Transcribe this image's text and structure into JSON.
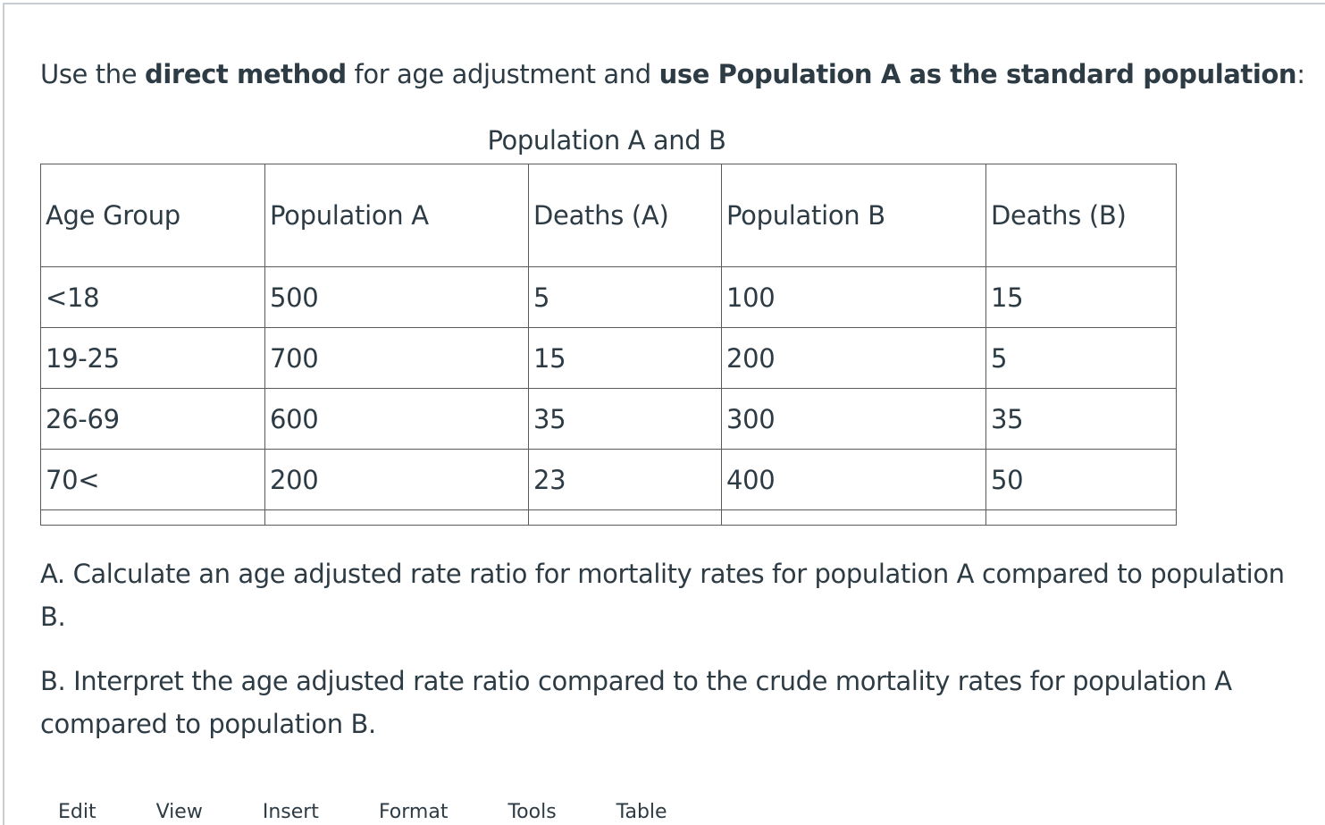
{
  "intro": {
    "prefix": "Use the ",
    "bold1": "direct method",
    "middle": " for age adjustment and ",
    "bold2": "use Population A as the standard population",
    "suffix": ":"
  },
  "table": {
    "caption": "Population A and B",
    "headers": [
      "Age Group",
      "Population A",
      "Deaths (A)",
      "Population B",
      "Deaths (B)"
    ],
    "rows": [
      [
        "<18",
        "500",
        "5",
        "100",
        "15"
      ],
      [
        "19-25",
        "700",
        "15",
        "200",
        "5"
      ],
      [
        "26-69",
        "600",
        "35",
        "300",
        "35"
      ],
      [
        "70<",
        "200",
        "23",
        "400",
        "50"
      ]
    ]
  },
  "questions": {
    "a": "A.  Calculate an age adjusted rate ratio for mortality rates for population A compared to population B.",
    "b": "B.  Interpret the age adjusted rate ratio compared to the crude mortality rates for population A compared to population B."
  },
  "editor_menu": [
    "Edit",
    "View",
    "Insert",
    "Format",
    "Tools",
    "Table"
  ]
}
